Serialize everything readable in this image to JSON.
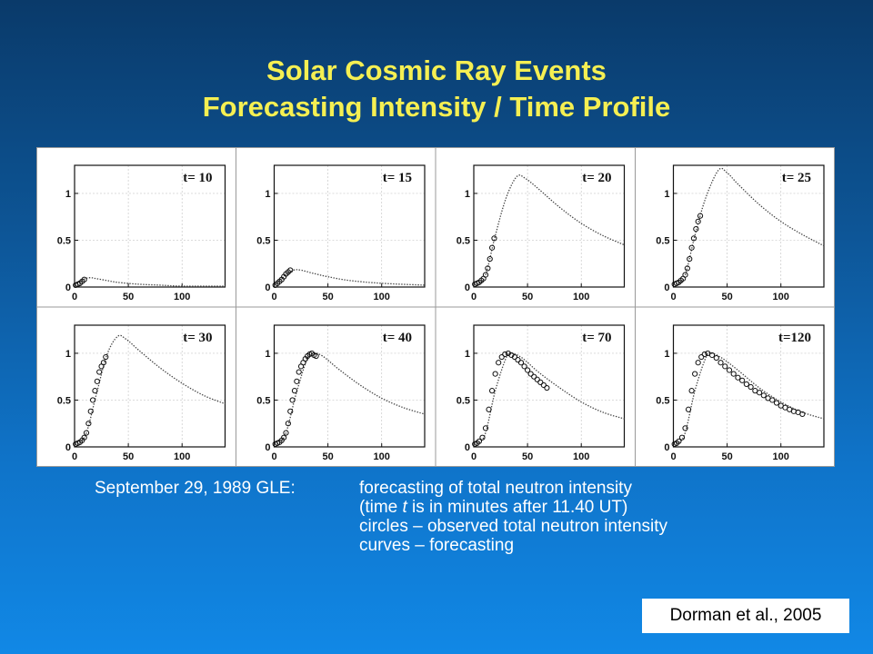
{
  "slide": {
    "title_line1": "Solar Cosmic Ray Events",
    "title_line2": "Forecasting Intensity / Time Profile"
  },
  "caption": {
    "label": "September 29, 1989 GLE:",
    "line1": "forecasting of total neutron intensity",
    "line2_pre": "(time ",
    "line2_var": "t",
    "line2_post": " is in minutes after 11.40 UT)",
    "line3": "circles – observed total neutron intensity",
    "line4": "curves – forecasting"
  },
  "citation": "Dorman et al., 2005",
  "colors": {
    "title": "#f5ef52",
    "caption": "#ffffff",
    "background_top": "#0a3a6a",
    "background_bottom": "#1188e6"
  },
  "chart_data": [
    {
      "type": "line",
      "panel_label": "t= 10",
      "x_ticks": [
        0,
        50,
        100
      ],
      "y_ticks": [
        "0",
        "0.5",
        "1"
      ],
      "xlim": [
        0,
        140
      ],
      "ylim": [
        0,
        1.3
      ],
      "grid": true,
      "series": [
        {
          "values": [
            [
              0,
              0.02
            ],
            [
              5,
              0.06
            ],
            [
              10,
              0.09
            ],
            [
              15,
              0.1
            ],
            [
              20,
              0.09
            ],
            [
              30,
              0.07
            ],
            [
              40,
              0.05
            ],
            [
              60,
              0.03
            ],
            [
              80,
              0.02
            ],
            [
              100,
              0.01
            ],
            [
              140,
              0.01
            ]
          ]
        }
      ],
      "observed": [
        [
          1,
          0.02
        ],
        [
          3,
          0.03
        ],
        [
          5,
          0.04
        ],
        [
          7,
          0.06
        ],
        [
          9,
          0.08
        ]
      ]
    },
    {
      "type": "line",
      "panel_label": "t= 15",
      "x_ticks": [
        0,
        50,
        100
      ],
      "y_ticks": [
        "0",
        "0.5",
        "1"
      ],
      "xlim": [
        0,
        140
      ],
      "ylim": [
        0,
        1.3
      ],
      "grid": true,
      "series": [
        {
          "values": [
            [
              0,
              0.02
            ],
            [
              10,
              0.12
            ],
            [
              18,
              0.18
            ],
            [
              25,
              0.18
            ],
            [
              35,
              0.15
            ],
            [
              50,
              0.11
            ],
            [
              70,
              0.07
            ],
            [
              100,
              0.04
            ],
            [
              140,
              0.02
            ]
          ]
        }
      ],
      "observed": [
        [
          1,
          0.02
        ],
        [
          3,
          0.04
        ],
        [
          5,
          0.06
        ],
        [
          7,
          0.08
        ],
        [
          9,
          0.11
        ],
        [
          11,
          0.14
        ],
        [
          13,
          0.16
        ],
        [
          15,
          0.18
        ]
      ]
    },
    {
      "type": "line",
      "panel_label": "t= 20",
      "x_ticks": [
        0,
        50,
        100
      ],
      "y_ticks": [
        "0",
        "0.5",
        "1"
      ],
      "xlim": [
        0,
        140
      ],
      "ylim": [
        0,
        1.3
      ],
      "grid": true,
      "series": [
        {
          "values": [
            [
              0,
              0.03
            ],
            [
              10,
              0.1
            ],
            [
              20,
              0.55
            ],
            [
              30,
              0.95
            ],
            [
              40,
              1.18
            ],
            [
              48,
              1.16
            ],
            [
              60,
              1.05
            ],
            [
              80,
              0.85
            ],
            [
              100,
              0.68
            ],
            [
              120,
              0.55
            ],
            [
              140,
              0.45
            ]
          ]
        }
      ],
      "observed": [
        [
          1,
          0.03
        ],
        [
          3,
          0.04
        ],
        [
          5,
          0.05
        ],
        [
          7,
          0.07
        ],
        [
          9,
          0.09
        ],
        [
          11,
          0.13
        ],
        [
          13,
          0.2
        ],
        [
          15,
          0.3
        ],
        [
          17,
          0.42
        ],
        [
          19,
          0.52
        ]
      ]
    },
    {
      "type": "line",
      "panel_label": "t= 25",
      "x_ticks": [
        0,
        50,
        100
      ],
      "y_ticks": [
        "0",
        "0.5",
        "1"
      ],
      "xlim": [
        0,
        140
      ],
      "ylim": [
        0,
        1.3
      ],
      "grid": true,
      "series": [
        {
          "values": [
            [
              0,
              0.03
            ],
            [
              10,
              0.1
            ],
            [
              20,
              0.55
            ],
            [
              30,
              0.95
            ],
            [
              42,
              1.25
            ],
            [
              50,
              1.22
            ],
            [
              60,
              1.1
            ],
            [
              80,
              0.88
            ],
            [
              100,
              0.7
            ],
            [
              120,
              0.56
            ],
            [
              140,
              0.44
            ]
          ]
        }
      ],
      "observed": [
        [
          1,
          0.03
        ],
        [
          3,
          0.04
        ],
        [
          5,
          0.05
        ],
        [
          7,
          0.07
        ],
        [
          9,
          0.09
        ],
        [
          11,
          0.13
        ],
        [
          13,
          0.2
        ],
        [
          15,
          0.3
        ],
        [
          17,
          0.42
        ],
        [
          19,
          0.52
        ],
        [
          21,
          0.62
        ],
        [
          23,
          0.7
        ],
        [
          25,
          0.76
        ]
      ]
    },
    {
      "type": "line",
      "panel_label": "t= 30",
      "x_ticks": [
        0,
        50,
        100
      ],
      "y_ticks": [
        "0",
        "0.5",
        "1"
      ],
      "xlim": [
        0,
        140
      ],
      "ylim": [
        0,
        1.3
      ],
      "grid": true,
      "series": [
        {
          "values": [
            [
              0,
              0.03
            ],
            [
              10,
              0.12
            ],
            [
              20,
              0.55
            ],
            [
              30,
              0.98
            ],
            [
              40,
              1.18
            ],
            [
              48,
              1.15
            ],
            [
              60,
              1.03
            ],
            [
              80,
              0.84
            ],
            [
              100,
              0.68
            ],
            [
              120,
              0.55
            ],
            [
              140,
              0.46
            ]
          ]
        }
      ],
      "observed": [
        [
          1,
          0.03
        ],
        [
          3,
          0.04
        ],
        [
          5,
          0.05
        ],
        [
          7,
          0.07
        ],
        [
          9,
          0.1
        ],
        [
          11,
          0.15
        ],
        [
          13,
          0.25
        ],
        [
          15,
          0.38
        ],
        [
          17,
          0.5
        ],
        [
          19,
          0.6
        ],
        [
          21,
          0.7
        ],
        [
          23,
          0.8
        ],
        [
          25,
          0.86
        ],
        [
          27,
          0.9
        ],
        [
          29,
          0.96
        ]
      ]
    },
    {
      "type": "line",
      "panel_label": "t= 40",
      "x_ticks": [
        0,
        50,
        100
      ],
      "y_ticks": [
        "0",
        "0.5",
        "1"
      ],
      "xlim": [
        0,
        140
      ],
      "ylim": [
        0,
        1.3
      ],
      "grid": true,
      "series": [
        {
          "values": [
            [
              0,
              0.03
            ],
            [
              10,
              0.12
            ],
            [
              20,
              0.55
            ],
            [
              30,
              0.92
            ],
            [
              36,
              1.0
            ],
            [
              45,
              0.97
            ],
            [
              60,
              0.83
            ],
            [
              80,
              0.66
            ],
            [
              100,
              0.52
            ],
            [
              120,
              0.42
            ],
            [
              140,
              0.35
            ]
          ]
        }
      ],
      "observed": [
        [
          1,
          0.03
        ],
        [
          3,
          0.04
        ],
        [
          5,
          0.05
        ],
        [
          7,
          0.07
        ],
        [
          9,
          0.1
        ],
        [
          11,
          0.15
        ],
        [
          13,
          0.25
        ],
        [
          15,
          0.38
        ],
        [
          17,
          0.5
        ],
        [
          19,
          0.6
        ],
        [
          21,
          0.7
        ],
        [
          23,
          0.8
        ],
        [
          25,
          0.86
        ],
        [
          27,
          0.9
        ],
        [
          29,
          0.94
        ],
        [
          31,
          0.97
        ],
        [
          33,
          0.99
        ],
        [
          35,
          1.0
        ],
        [
          37,
          0.98
        ],
        [
          39,
          0.97
        ]
      ]
    },
    {
      "type": "line",
      "panel_label": "t= 70",
      "x_ticks": [
        0,
        50,
        100
      ],
      "y_ticks": [
        "0",
        "0.5",
        "1"
      ],
      "xlim": [
        0,
        140
      ],
      "ylim": [
        0,
        1.3
      ],
      "grid": true,
      "series": [
        {
          "values": [
            [
              0,
              0.03
            ],
            [
              10,
              0.12
            ],
            [
              20,
              0.6
            ],
            [
              30,
              0.95
            ],
            [
              35,
              1.0
            ],
            [
              45,
              0.95
            ],
            [
              60,
              0.8
            ],
            [
              80,
              0.63
            ],
            [
              100,
              0.48
            ],
            [
              120,
              0.37
            ],
            [
              140,
              0.3
            ]
          ]
        }
      ],
      "observed": [
        [
          1,
          0.03
        ],
        [
          3,
          0.04
        ],
        [
          5,
          0.06
        ],
        [
          8,
          0.1
        ],
        [
          11,
          0.2
        ],
        [
          14,
          0.4
        ],
        [
          17,
          0.6
        ],
        [
          20,
          0.78
        ],
        [
          23,
          0.9
        ],
        [
          26,
          0.96
        ],
        [
          29,
          0.99
        ],
        [
          32,
          1.0
        ],
        [
          35,
          0.98
        ],
        [
          38,
          0.96
        ],
        [
          41,
          0.93
        ],
        [
          44,
          0.9
        ],
        [
          47,
          0.86
        ],
        [
          50,
          0.82
        ],
        [
          53,
          0.78
        ],
        [
          56,
          0.75
        ],
        [
          59,
          0.72
        ],
        [
          62,
          0.69
        ],
        [
          65,
          0.66
        ],
        [
          68,
          0.63
        ]
      ]
    },
    {
      "type": "line",
      "panel_label": "t=120",
      "x_ticks": [
        0,
        50,
        100
      ],
      "y_ticks": [
        "0",
        "0.5",
        "1"
      ],
      "xlim": [
        0,
        140
      ],
      "ylim": [
        0,
        1.3
      ],
      "grid": true,
      "series": [
        {
          "values": [
            [
              0,
              0.03
            ],
            [
              10,
              0.12
            ],
            [
              20,
              0.6
            ],
            [
              30,
              0.95
            ],
            [
              35,
              1.0
            ],
            [
              45,
              0.95
            ],
            [
              60,
              0.82
            ],
            [
              80,
              0.63
            ],
            [
              100,
              0.48
            ],
            [
              120,
              0.37
            ],
            [
              140,
              0.3
            ]
          ]
        }
      ],
      "observed": [
        [
          1,
          0.03
        ],
        [
          3,
          0.04
        ],
        [
          5,
          0.06
        ],
        [
          8,
          0.1
        ],
        [
          11,
          0.2
        ],
        [
          14,
          0.4
        ],
        [
          17,
          0.6
        ],
        [
          20,
          0.78
        ],
        [
          23,
          0.9
        ],
        [
          26,
          0.96
        ],
        [
          29,
          0.99
        ],
        [
          32,
          1.0
        ],
        [
          36,
          0.98
        ],
        [
          40,
          0.95
        ],
        [
          44,
          0.9
        ],
        [
          48,
          0.86
        ],
        [
          52,
          0.82
        ],
        [
          56,
          0.78
        ],
        [
          60,
          0.74
        ],
        [
          64,
          0.71
        ],
        [
          68,
          0.67
        ],
        [
          72,
          0.64
        ],
        [
          76,
          0.6
        ],
        [
          80,
          0.58
        ],
        [
          84,
          0.55
        ],
        [
          88,
          0.52
        ],
        [
          92,
          0.5
        ],
        [
          96,
          0.47
        ],
        [
          100,
          0.44
        ],
        [
          104,
          0.42
        ],
        [
          108,
          0.4
        ],
        [
          112,
          0.38
        ],
        [
          116,
          0.37
        ],
        [
          120,
          0.35
        ]
      ]
    }
  ]
}
